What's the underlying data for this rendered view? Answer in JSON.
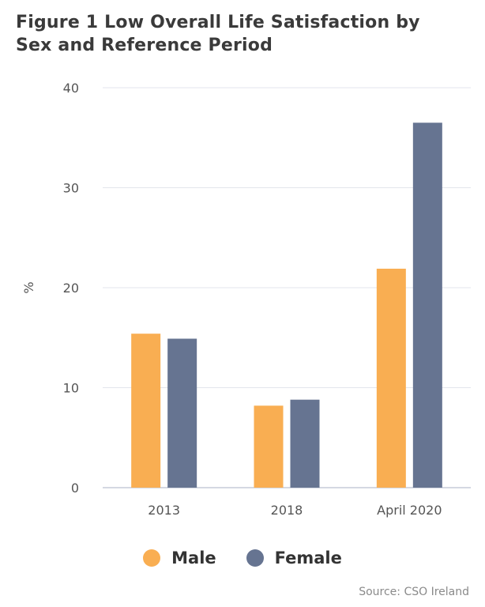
{
  "chart_data": {
    "type": "bar",
    "title": [
      "Figure 1 Low Overall Life Satisfaction by",
      "Sex and Reference Period"
    ],
    "categories": [
      "2013",
      "2018",
      "April 2020"
    ],
    "series": [
      {
        "name": "Male",
        "color": "#F9AE52",
        "values": [
          15.4,
          8.2,
          21.9
        ]
      },
      {
        "name": "Female",
        "color": "#667491",
        "values": [
          14.9,
          8.8,
          36.5
        ]
      }
    ],
    "ylabel": "%",
    "ylim": [
      0,
      40
    ],
    "yticks": [
      0,
      10,
      20,
      30,
      40
    ],
    "grid": true,
    "legend_position": "bottom-center",
    "source": "Source: CSO Ireland"
  }
}
